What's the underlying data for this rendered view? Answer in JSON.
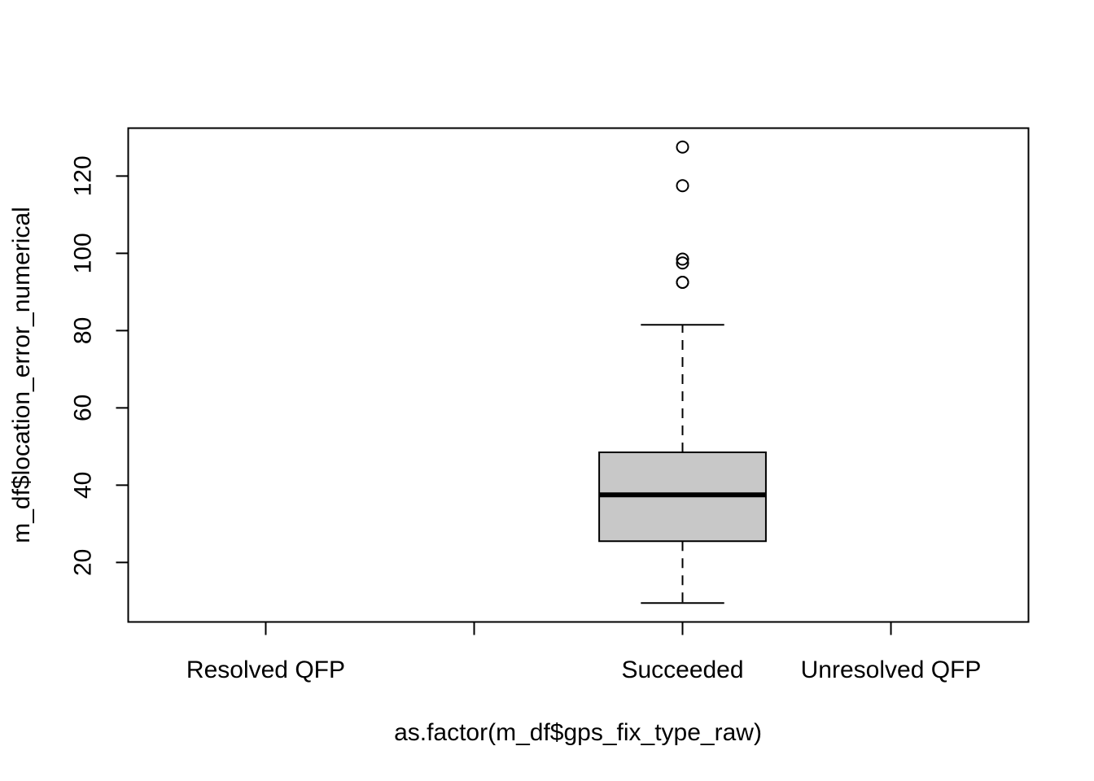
{
  "chart_data": {
    "type": "boxplot",
    "title": "",
    "xlabel": "as.factor(m_df$gps_fix_type_raw)",
    "ylabel": "m_df$location_error_numerical",
    "ylim": [
      4.6,
      132.4
    ],
    "y_ticks": [
      20,
      40,
      60,
      80,
      100,
      120
    ],
    "y_tick_labels": [
      "20",
      "40",
      "60",
      "80",
      "100",
      "120"
    ],
    "categories": [
      "Resolved QFP",
      "",
      "Succeeded",
      "Unresolved QFP"
    ],
    "x_tick_labels": [
      "Resolved QFP",
      "",
      "Succeeded",
      "Unresolved QFP"
    ],
    "boxes": [
      {
        "category": "Succeeded",
        "whisker_low": 9.5,
        "q1": 25.5,
        "median": 37.5,
        "q3": 48.5,
        "whisker_high": 81.5,
        "outliers": [
          92.5,
          92.5,
          97.5,
          98.5,
          117.5,
          127.5
        ]
      }
    ],
    "box_fill": "#c8c8c8",
    "grid": false,
    "legend": "none"
  }
}
